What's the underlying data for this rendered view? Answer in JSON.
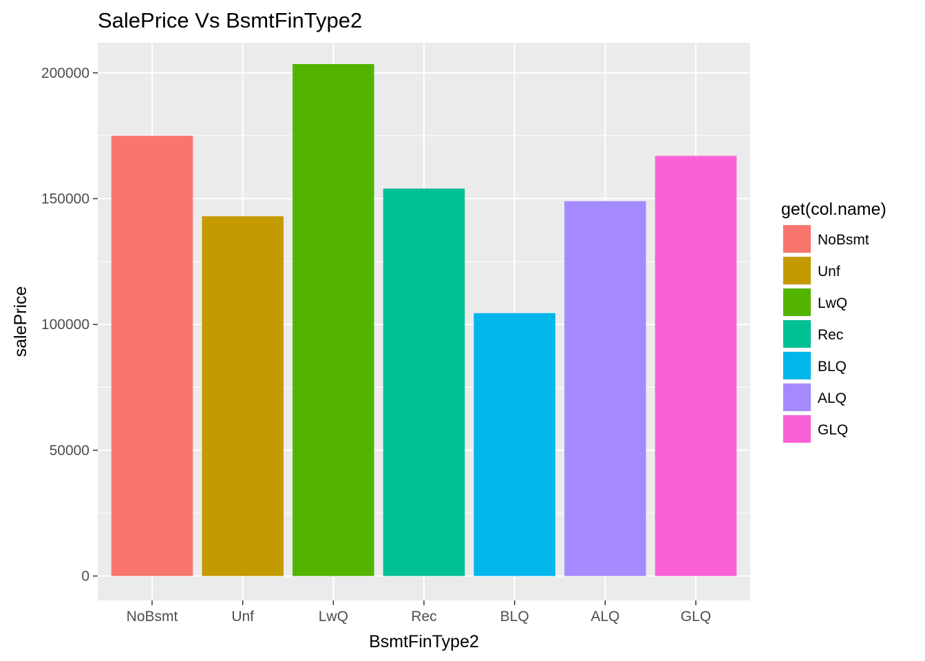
{
  "chart_data": {
    "type": "bar",
    "title": "SalePrice Vs BsmtFinType2",
    "xlabel": "BsmtFinType2",
    "ylabel": "salePrice",
    "categories": [
      "NoBsmt",
      "Unf",
      "LwQ",
      "Rec",
      "BLQ",
      "ALQ",
      "GLQ"
    ],
    "values": [
      175000,
      143000,
      203500,
      154000,
      104500,
      149000,
      167000
    ],
    "colors": [
      "#F8766D",
      "#C49A00",
      "#53B400",
      "#00C094",
      "#00B6EB",
      "#A58AFF",
      "#FB61D7"
    ],
    "ylim": [
      -9700,
      212000
    ],
    "yticks": [
      0,
      50000,
      100000,
      150000,
      200000
    ],
    "ytick_labels": [
      "0",
      "50000",
      "100000",
      "150000",
      "200000"
    ],
    "grid": true,
    "panel_background": "#EBEBEB",
    "legend": {
      "title": "get(col.name)",
      "position": "right",
      "entries": [
        "NoBsmt",
        "Unf",
        "LwQ",
        "Rec",
        "BLQ",
        "ALQ",
        "GLQ"
      ]
    }
  }
}
